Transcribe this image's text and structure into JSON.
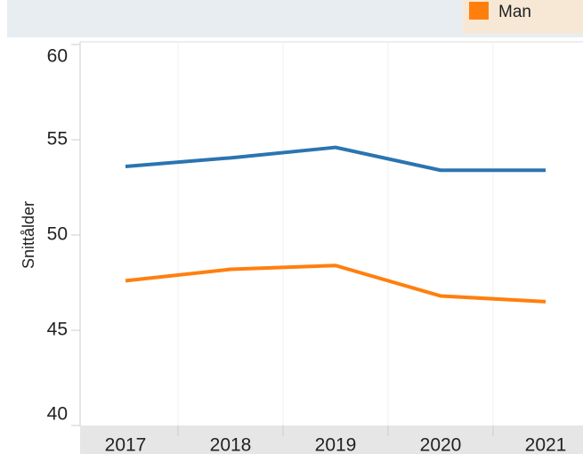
{
  "chart_data": {
    "type": "line",
    "y_label": "Snittålder",
    "categories": [
      "2017",
      "2018",
      "2019",
      "2020",
      "2021"
    ],
    "series": [
      {
        "color": "#2b74b1",
        "values": [
          53.6,
          54.05,
          54.6,
          53.4,
          53.4
        ]
      },
      {
        "name": "Man",
        "color": "#ff7f0e",
        "values": [
          47.6,
          48.2,
          48.4,
          46.8,
          46.5
        ]
      }
    ],
    "ylim": [
      40,
      60
    ],
    "yticks": [
      40,
      45,
      50,
      55,
      60
    ],
    "legend": "top-right"
  }
}
